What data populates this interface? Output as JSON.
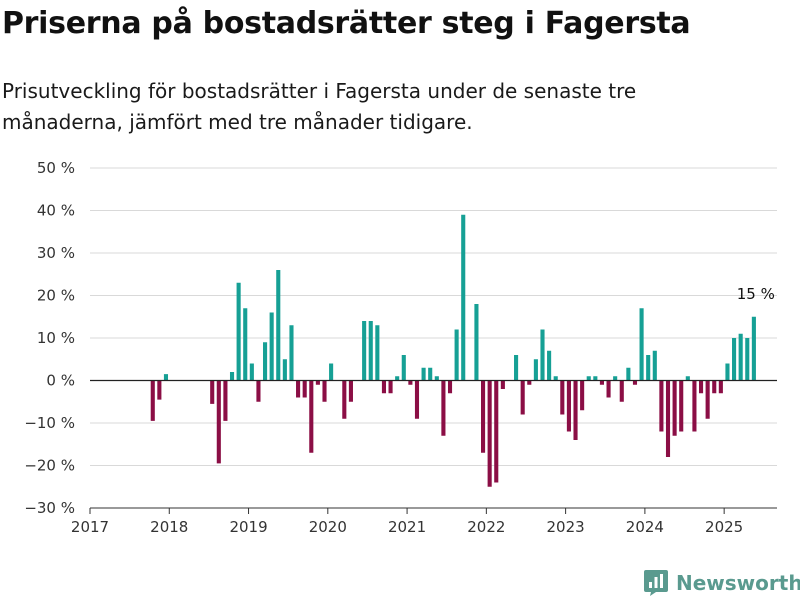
{
  "header": {
    "title": "Priserna på bostadsrätter steg i Fagersta",
    "subtitle": "Prisutveckling för bostadsrätter i Fagersta under de senaste tre månaderna, jämfört med tre månader tidigare."
  },
  "brand": {
    "name": "Newsworthy",
    "icon": "newsworthy-logo-icon"
  },
  "colors": {
    "positive": "#16a095",
    "negative": "#8b0e45",
    "grid": "#d9d9d9",
    "axis": "#333333"
  },
  "chart_data": {
    "type": "bar",
    "title": "Priserna på bostadsrätter steg i Fagersta",
    "subtitle": "Prisutveckling för bostadsrätter i Fagersta under de senaste tre månaderna, jämfört med tre månader tidigare.",
    "ylim": [
      -30,
      50
    ],
    "y_ticks": [
      50,
      40,
      30,
      20,
      10,
      0,
      -10,
      -20,
      -30
    ],
    "y_tick_labels": [
      "50 %",
      "40 %",
      "30 %",
      "20 %",
      "10 %",
      "0 %",
      "−10 %",
      "−20 %",
      "−30 %"
    ],
    "xlim": [
      "2017-01",
      "2025-09"
    ],
    "x_tick_labels": [
      "2017",
      "2018",
      "2019",
      "2020",
      "2021",
      "2022",
      "2023",
      "2024",
      "2025"
    ],
    "grid": true,
    "series": [
      {
        "values": [
          {
            "x": "2017-10",
            "y": -9.5
          },
          {
            "x": "2017-11",
            "y": -4.5
          },
          {
            "x": "2017-12",
            "y": 1.5
          },
          {
            "x": "2018-07",
            "y": -5.5
          },
          {
            "x": "2018-08",
            "y": -19.5
          },
          {
            "x": "2018-09",
            "y": -9.5
          },
          {
            "x": "2018-10",
            "y": 2
          },
          {
            "x": "2018-11",
            "y": 23
          },
          {
            "x": "2018-12",
            "y": 17
          },
          {
            "x": "2019-01",
            "y": 4
          },
          {
            "x": "2019-02",
            "y": -5
          },
          {
            "x": "2019-03",
            "y": 9
          },
          {
            "x": "2019-04",
            "y": 16
          },
          {
            "x": "2019-05",
            "y": 26
          },
          {
            "x": "2019-06",
            "y": 5
          },
          {
            "x": "2019-07",
            "y": 13
          },
          {
            "x": "2019-08",
            "y": -4
          },
          {
            "x": "2019-09",
            "y": -4
          },
          {
            "x": "2019-10",
            "y": -17
          },
          {
            "x": "2019-11",
            "y": -1
          },
          {
            "x": "2019-12",
            "y": -5
          },
          {
            "x": "2020-01",
            "y": 4
          },
          {
            "x": "2020-03",
            "y": -9
          },
          {
            "x": "2020-04",
            "y": -5
          },
          {
            "x": "2020-06",
            "y": 14
          },
          {
            "x": "2020-07",
            "y": 14
          },
          {
            "x": "2020-08",
            "y": 13
          },
          {
            "x": "2020-09",
            "y": -3
          },
          {
            "x": "2020-10",
            "y": -3
          },
          {
            "x": "2020-11",
            "y": 1
          },
          {
            "x": "2020-12",
            "y": 6
          },
          {
            "x": "2021-01",
            "y": -1
          },
          {
            "x": "2021-02",
            "y": -9
          },
          {
            "x": "2021-03",
            "y": 3
          },
          {
            "x": "2021-04",
            "y": 3
          },
          {
            "x": "2021-05",
            "y": 1
          },
          {
            "x": "2021-06",
            "y": -13
          },
          {
            "x": "2021-07",
            "y": -3
          },
          {
            "x": "2021-08",
            "y": 12
          },
          {
            "x": "2021-09",
            "y": 39
          },
          {
            "x": "2021-11",
            "y": 18
          },
          {
            "x": "2021-12",
            "y": -17
          },
          {
            "x": "2022-01",
            "y": -25
          },
          {
            "x": "2022-02",
            "y": -24
          },
          {
            "x": "2022-03",
            "y": -2
          },
          {
            "x": "2022-05",
            "y": 6
          },
          {
            "x": "2022-06",
            "y": -8
          },
          {
            "x": "2022-07",
            "y": -1
          },
          {
            "x": "2022-08",
            "y": 5
          },
          {
            "x": "2022-09",
            "y": 12
          },
          {
            "x": "2022-10",
            "y": 7
          },
          {
            "x": "2022-11",
            "y": 1
          },
          {
            "x": "2022-12",
            "y": -8
          },
          {
            "x": "2023-01",
            "y": -12
          },
          {
            "x": "2023-02",
            "y": -14
          },
          {
            "x": "2023-03",
            "y": -7
          },
          {
            "x": "2023-04",
            "y": 1
          },
          {
            "x": "2023-05",
            "y": 1
          },
          {
            "x": "2023-06",
            "y": -1
          },
          {
            "x": "2023-07",
            "y": -4
          },
          {
            "x": "2023-08",
            "y": 1
          },
          {
            "x": "2023-09",
            "y": -5
          },
          {
            "x": "2023-10",
            "y": 3
          },
          {
            "x": "2023-11",
            "y": -1
          },
          {
            "x": "2023-12",
            "y": 17
          },
          {
            "x": "2024-01",
            "y": 6
          },
          {
            "x": "2024-02",
            "y": 7
          },
          {
            "x": "2024-03",
            "y": -12
          },
          {
            "x": "2024-04",
            "y": -18
          },
          {
            "x": "2024-05",
            "y": -13
          },
          {
            "x": "2024-06",
            "y": -12
          },
          {
            "x": "2024-07",
            "y": 1
          },
          {
            "x": "2024-08",
            "y": -12
          },
          {
            "x": "2024-09",
            "y": -3
          },
          {
            "x": "2024-10",
            "y": -9
          },
          {
            "x": "2024-11",
            "y": -3
          },
          {
            "x": "2024-12",
            "y": -3
          },
          {
            "x": "2025-01",
            "y": 4
          },
          {
            "x": "2025-02",
            "y": 10
          },
          {
            "x": "2025-03",
            "y": 11
          },
          {
            "x": "2025-04",
            "y": 10
          },
          {
            "x": "2025-05",
            "y": 15
          }
        ]
      }
    ],
    "annotations": [
      {
        "x": "2025-05",
        "y": 15,
        "text": "15 %"
      }
    ]
  }
}
